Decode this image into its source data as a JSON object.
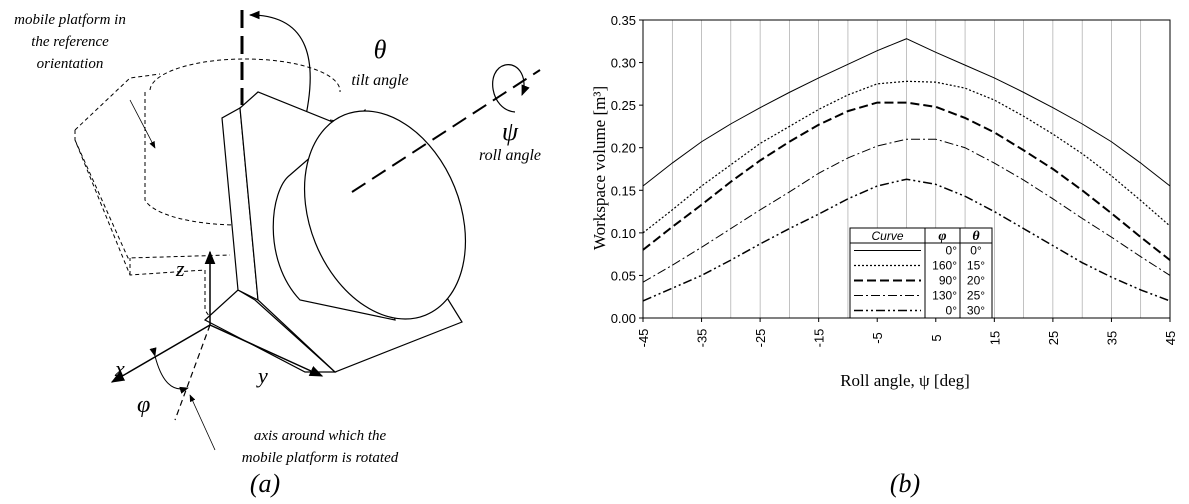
{
  "diagram": {
    "reference_label": [
      "mobile platform in",
      "the reference",
      "orientation"
    ],
    "theta_symbol": "θ",
    "tilt_label": "tilt angle",
    "psi_symbol": "ψ",
    "roll_label": "roll angle",
    "axis_z": "z",
    "axis_x": "x",
    "axis_y": "y",
    "phi_symbol": "φ",
    "axis_note": [
      "axis around which the",
      "mobile platform is rotated"
    ],
    "panel_label": "(a)"
  },
  "chart_data": {
    "type": "line",
    "panel_label": "(b)",
    "x_label": "Roll angle, ψ   [deg]",
    "y_label": "Workspace volume [m³]",
    "x": [
      -45,
      -40,
      -35,
      -30,
      -25,
      -20,
      -15,
      -10,
      -5,
      0,
      5,
      10,
      15,
      20,
      25,
      30,
      35,
      40,
      45
    ],
    "xlim": [
      -45,
      45
    ],
    "xticks": [
      -45,
      -35,
      -25,
      -15,
      -5,
      5,
      15,
      25,
      35,
      45
    ],
    "xminor": [
      -40,
      -30,
      -20,
      -10,
      0,
      10,
      20,
      30,
      40
    ],
    "ylim": [
      0,
      0.35
    ],
    "yticks": [
      {
        "value": 0,
        "label": "0.00"
      },
      0.05,
      {
        "value": 0.1,
        "label": "0.10"
      },
      0.15,
      {
        "value": 0.2,
        "label": "0.20"
      },
      0.25,
      {
        "value": 0.3,
        "label": "0.30"
      },
      0.35
    ],
    "grid": "x",
    "legend_header": [
      "Curve",
      "φ",
      "θ"
    ],
    "series": [
      {
        "phi": "0°",
        "theta": "0°",
        "color": "#000000",
        "dash": "solid",
        "values": [
          0.155,
          0.182,
          0.207,
          0.228,
          0.247,
          0.265,
          0.282,
          0.298,
          0.314,
          0.328,
          0.312,
          0.297,
          0.282,
          0.265,
          0.247,
          0.228,
          0.207,
          0.182,
          0.155
        ]
      },
      {
        "phi": "160°",
        "theta": "15°",
        "color": "#000000",
        "dash": "dotted",
        "values": [
          0.1,
          0.127,
          0.155,
          0.18,
          0.205,
          0.225,
          0.245,
          0.262,
          0.275,
          0.278,
          0.277,
          0.27,
          0.256,
          0.237,
          0.216,
          0.193,
          0.167,
          0.138,
          0.108
        ]
      },
      {
        "phi": "90°",
        "theta": "20°",
        "color": "#000000",
        "dash": "dashed",
        "values": [
          0.08,
          0.107,
          0.133,
          0.16,
          0.185,
          0.207,
          0.227,
          0.243,
          0.253,
          0.253,
          0.248,
          0.235,
          0.218,
          0.197,
          0.175,
          0.15,
          0.123,
          0.095,
          0.068
        ]
      },
      {
        "phi": "130°",
        "theta": "25°",
        "color": "#000000",
        "dash": "dashdot",
        "values": [
          0.042,
          0.062,
          0.083,
          0.105,
          0.127,
          0.148,
          0.17,
          0.188,
          0.202,
          0.21,
          0.21,
          0.2,
          0.182,
          0.162,
          0.14,
          0.117,
          0.095,
          0.072,
          0.05
        ]
      },
      {
        "phi": "0°",
        "theta": "30°",
        "color": "#000000",
        "dash": "dashdotdot",
        "values": [
          0.02,
          0.035,
          0.05,
          0.068,
          0.087,
          0.105,
          0.122,
          0.14,
          0.155,
          0.163,
          0.157,
          0.143,
          0.125,
          0.105,
          0.085,
          0.065,
          0.048,
          0.033,
          0.02
        ]
      }
    ]
  }
}
